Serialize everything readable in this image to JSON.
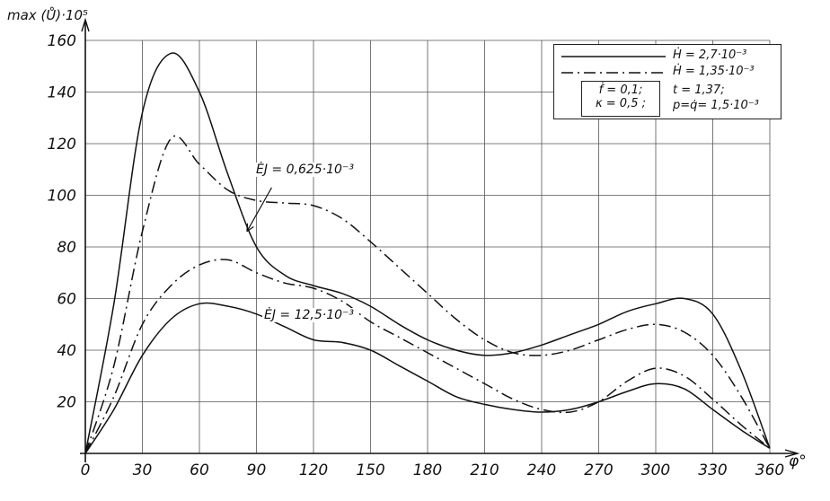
{
  "chart_data": {
    "type": "line",
    "title": "",
    "xlabel": "φ°",
    "ylabel": "max (Ů)·10⁵",
    "xlim": [
      0,
      360
    ],
    "ylim": [
      0,
      165
    ],
    "grid": true,
    "x_ticks": [
      0,
      30,
      60,
      90,
      120,
      150,
      180,
      210,
      240,
      270,
      300,
      330,
      360
    ],
    "y_ticks": [
      20,
      40,
      60,
      80,
      100,
      120,
      140,
      160
    ],
    "x": [
      0,
      15,
      30,
      45,
      60,
      75,
      90,
      105,
      120,
      135,
      150,
      165,
      180,
      195,
      210,
      225,
      240,
      255,
      270,
      285,
      300,
      315,
      330,
      345,
      360
    ],
    "series": [
      {
        "name": "ĖJ = 0,625·10⁻³, Ḣ = 2,7·10⁻³",
        "style": "solid",
        "values": [
          0,
          58,
          132,
          155,
          140,
          108,
          80,
          69,
          65,
          62,
          57,
          50,
          44,
          40,
          38,
          39,
          42,
          46,
          50,
          55,
          58,
          60,
          54,
          32,
          2
        ]
      },
      {
        "name": "ĖJ = 0,625·10⁻³, Ḣ = 1,35·10⁻³",
        "style": "dashdot",
        "values": [
          0,
          34,
          86,
          122,
          112,
          102,
          98,
          97,
          96,
          91,
          82,
          72,
          62,
          52,
          44,
          39,
          38,
          40,
          44,
          48,
          50,
          47,
          38,
          22,
          2
        ]
      },
      {
        "name": "ĖJ = 12,5·10⁻³, Ḣ = 2,7·10⁻³",
        "style": "solid",
        "values": [
          0,
          17,
          38,
          52,
          58,
          57,
          54,
          49,
          44,
          43,
          40,
          34,
          28,
          22,
          19,
          17,
          16,
          17,
          20,
          24,
          27,
          25,
          17,
          9,
          2
        ]
      },
      {
        "name": "ĖJ = 12,5·10⁻³, Ḣ = 1,35·10⁻³",
        "style": "dashdot",
        "values": [
          0,
          22,
          50,
          65,
          73,
          75,
          70,
          66,
          64,
          59,
          51,
          45,
          39,
          33,
          27,
          21,
          17,
          16,
          20,
          28,
          33,
          30,
          21,
          11,
          2
        ]
      }
    ],
    "legend": {
      "position": "top-right",
      "entries": [
        {
          "style": "solid",
          "label": "Ḣ = 2,7·10⁻³"
        },
        {
          "style": "dashdot",
          "label": "Ḣ = 1,35·10⁻³"
        }
      ],
      "params_box": [
        "ḟ = 0,1;",
        "κ = 0,5 ;"
      ],
      "params_right": [
        "t = 1,37;",
        "p=q̇= 1,5·10⁻³"
      ]
    },
    "annotations": [
      {
        "text": "ĖJ = 0,625·10⁻³",
        "x": 90,
        "y": 110,
        "arrow_from": {
          "x": 98,
          "y": 103
        },
        "arrow_to": {
          "x": 85,
          "y": 86
        }
      },
      {
        "text": "ĖJ = 12,5·10⁻³",
        "x": 95,
        "y": 54
      }
    ],
    "line_color": "#111111",
    "grid_color": "#555555"
  }
}
